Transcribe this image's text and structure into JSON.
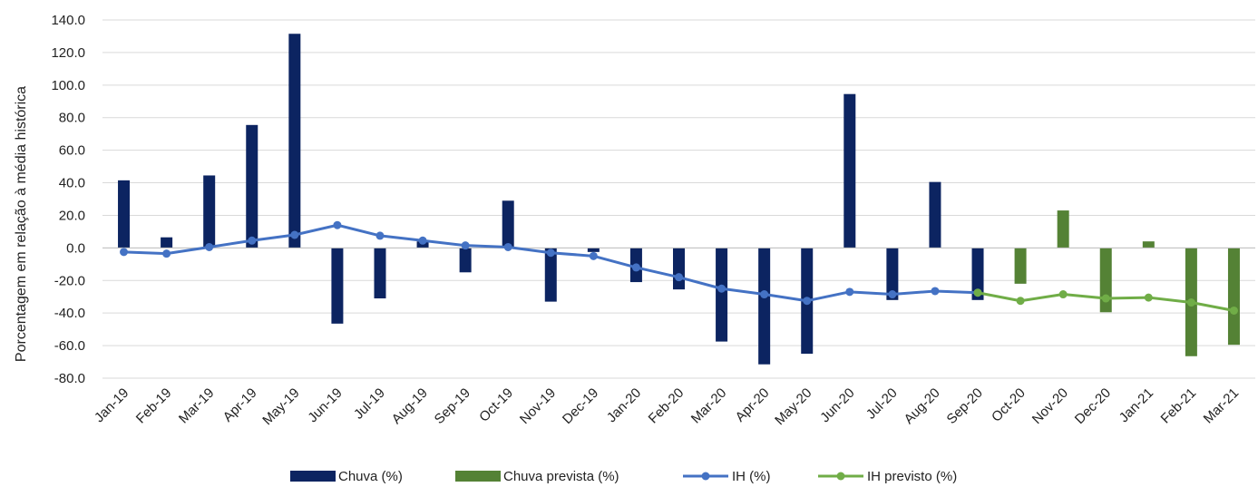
{
  "chart_data": {
    "type": "bar",
    "title": "",
    "xlabel": "",
    "ylabel": "Porcentagem em relação à média histórica",
    "ylim": [
      -80,
      140
    ],
    "y_ticks": [
      "140.0",
      "120.0",
      "100.0",
      "80.0",
      "60.0",
      "40.0",
      "20.0",
      "0.0",
      "-20.0",
      "-40.0",
      "-60.0",
      "-80.0"
    ],
    "grid": true,
    "legend_position": "bottom",
    "categories": [
      "Jan-19",
      "Feb-19",
      "Mar-19",
      "Apr-19",
      "May-19",
      "Jun-19",
      "Jul-19",
      "Aug-19",
      "Sep-19",
      "Oct-19",
      "Nov-19",
      "Dec-19",
      "Jan-20",
      "Feb-20",
      "Mar-20",
      "Apr-20",
      "May-20",
      "Jun-20",
      "Jul-20",
      "Aug-20",
      "Sep-20",
      "Oct-20",
      "Nov-20",
      "Dec-20",
      "Jan-21",
      "Feb-21",
      "Mar-21"
    ],
    "series": [
      {
        "name": "Chuva (%)",
        "type": "bar",
        "color": "#0c2461",
        "values": [
          41.5,
          6.5,
          44.5,
          75.5,
          131.5,
          -46.5,
          -31.0,
          4.0,
          -15.0,
          29.0,
          -33.0,
          -2.5,
          -21.0,
          -25.5,
          -57.5,
          -71.5,
          -65.0,
          94.5,
          -32.0,
          40.5,
          -32.0,
          null,
          null,
          null,
          null,
          null,
          null
        ]
      },
      {
        "name": "Chuva prevista (%)",
        "type": "bar",
        "color": "#548235",
        "values": [
          null,
          null,
          null,
          null,
          null,
          null,
          null,
          null,
          null,
          null,
          null,
          null,
          null,
          null,
          null,
          null,
          null,
          null,
          null,
          null,
          null,
          -22.0,
          23.0,
          -39.5,
          4.0,
          -66.5,
          -59.5
        ]
      },
      {
        "name": "IH (%)",
        "type": "line",
        "color": "#4472c4",
        "values": [
          -2.5,
          -3.5,
          0.5,
          4.5,
          8.0,
          14.0,
          7.5,
          4.5,
          1.5,
          0.5,
          -3.0,
          -5.0,
          -12.0,
          -18.0,
          -25.0,
          -28.5,
          -32.5,
          -27.0,
          -28.5,
          -26.5,
          -27.5,
          null,
          null,
          null,
          null,
          null,
          null
        ]
      },
      {
        "name": "IH previsto (%)",
        "type": "line",
        "color": "#70ad47",
        "values": [
          null,
          null,
          null,
          null,
          null,
          null,
          null,
          null,
          null,
          null,
          null,
          null,
          null,
          null,
          null,
          null,
          null,
          null,
          null,
          null,
          -27.5,
          -32.5,
          -28.5,
          -31.0,
          -30.5,
          -33.5,
          -38.5
        ]
      }
    ]
  }
}
